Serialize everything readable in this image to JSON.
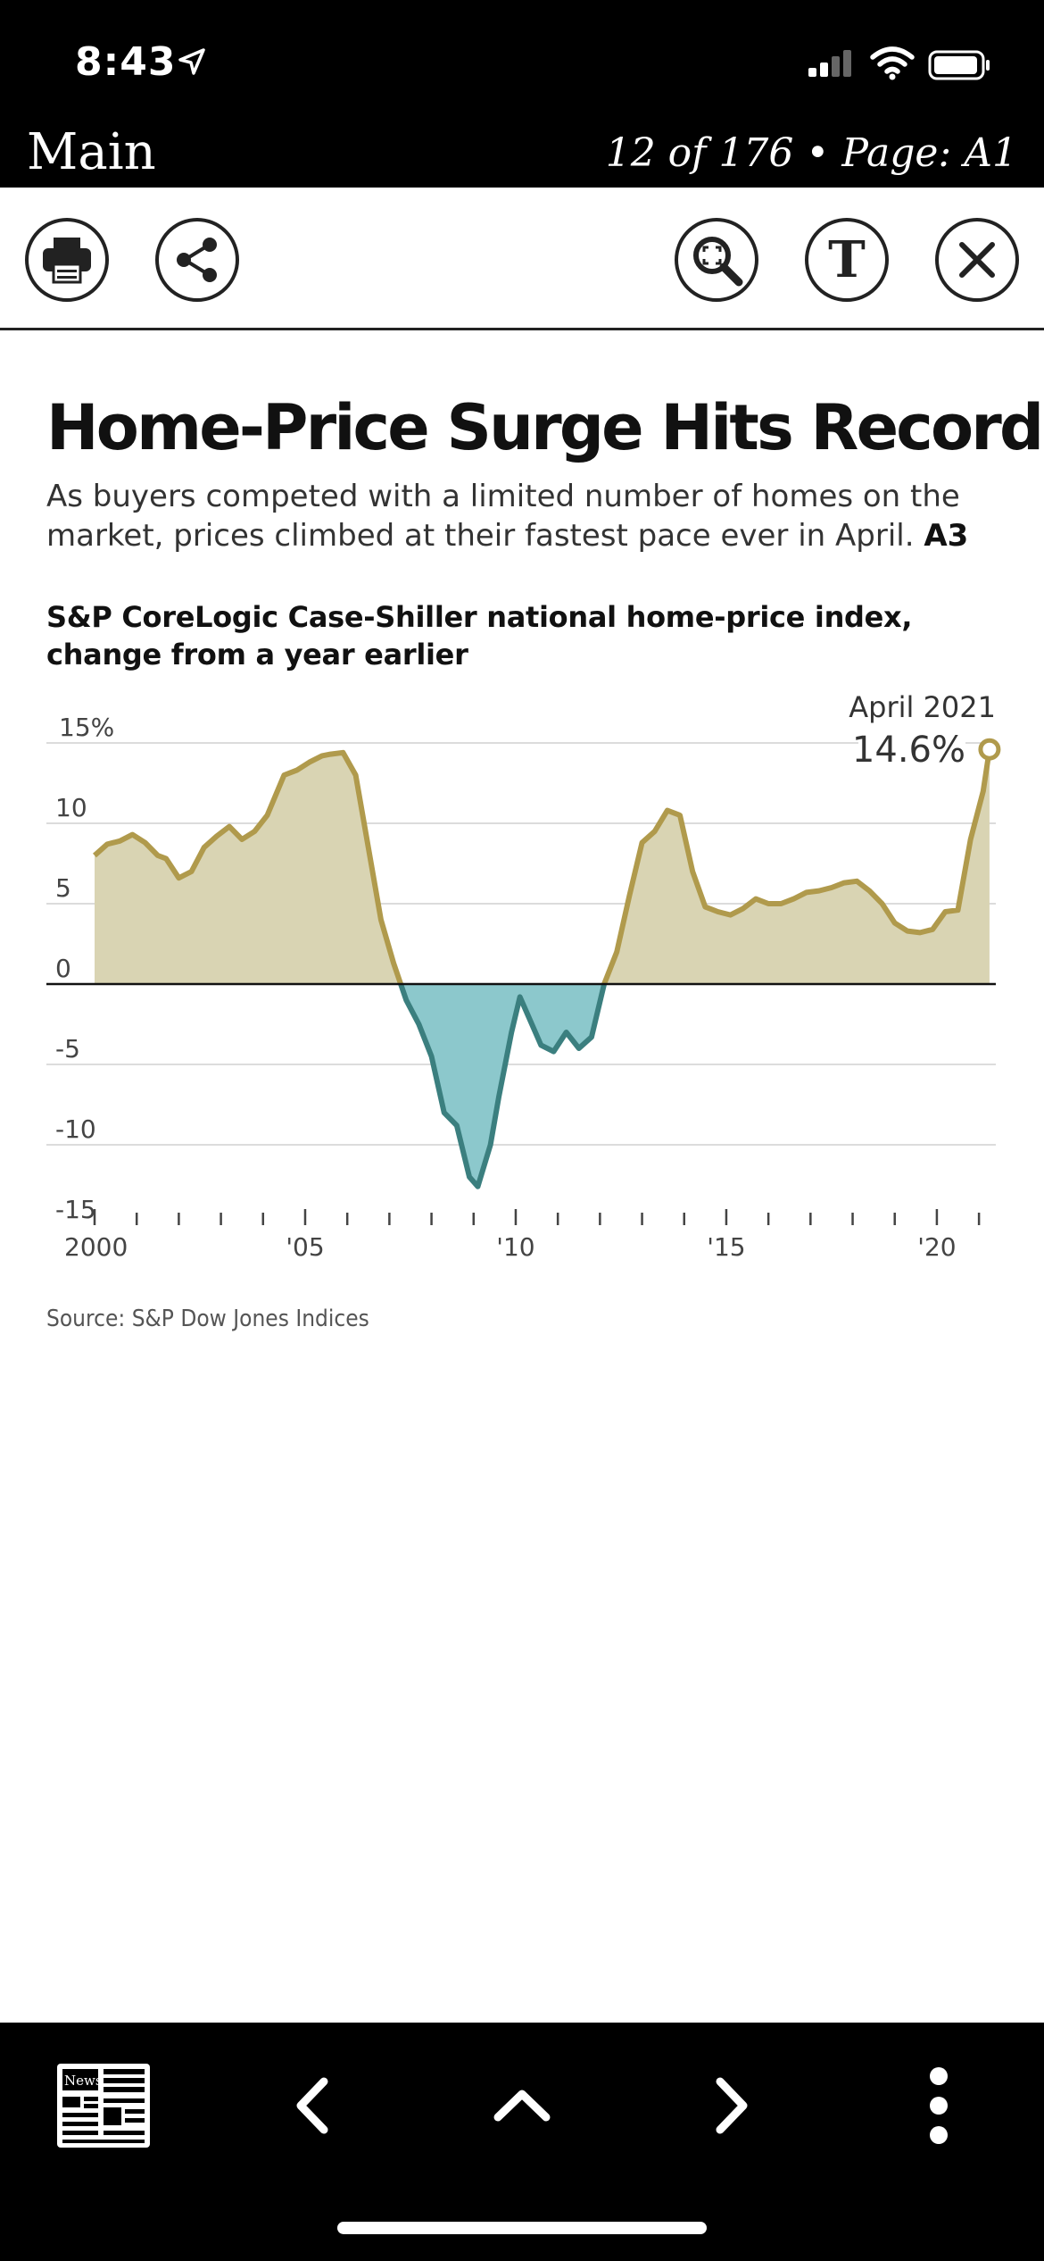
{
  "status_bar": {
    "time": "8:43"
  },
  "header": {
    "title": "Main",
    "page_info": "12 of 176 • Page: A1"
  },
  "toolbar": {
    "left_icons": [
      "printer-icon",
      "share-icon"
    ],
    "right_icons": [
      "zoom-icon",
      "text-size-icon",
      "close-icon"
    ],
    "text_size_glyph": "T"
  },
  "article": {
    "headline": "Home-Price Surge Hits Record",
    "dek": "As buyers competed with a limited number of homes on the market, prices climbed at their fastest pace ever in April.",
    "dek_ref": "A3",
    "chart_title_line1": "S&P CoreLogic Case-Shiller national home-price index,",
    "chart_title_line2": "change from a year earlier",
    "source": "Source: S&P Dow Jones Indices"
  },
  "chart_data": {
    "type": "area",
    "title": "S&P CoreLogic Case-Shiller national home-price index, change from a year earlier",
    "ylabel": "",
    "xlabel": "",
    "ylim": [
      -15,
      15
    ],
    "xlim": [
      2000,
      2021.4
    ],
    "y_ticks": [
      {
        "value": 15,
        "label": "15%"
      },
      {
        "value": 10,
        "label": "10"
      },
      {
        "value": 5,
        "label": "5"
      },
      {
        "value": 0,
        "label": "0"
      },
      {
        "value": -5,
        "label": "-5"
      },
      {
        "value": -10,
        "label": "-10"
      },
      {
        "value": -15,
        "label": "-15"
      }
    ],
    "x_ticks": [
      {
        "value": 2000,
        "label": "2000"
      },
      {
        "value": 2005,
        "label": "'05"
      },
      {
        "value": 2010,
        "label": "'10"
      },
      {
        "value": 2015,
        "label": "'15"
      },
      {
        "value": 2020,
        "label": "'20"
      }
    ],
    "annotation": {
      "label": "April 2021",
      "value_label": "14.6%",
      "x": 2021.25,
      "y": 14.6
    },
    "colors": {
      "positive_fill": "#d9d4b3",
      "negative_fill": "#8cc8cc",
      "positive_line": "#b09a4c",
      "negative_line": "#3b7f7f"
    },
    "series": [
      {
        "x": [
          2000.0,
          2000.3,
          2000.6,
          2000.9,
          2001.2,
          2001.5,
          2001.7,
          2002.0,
          2002.3,
          2002.6,
          2002.9,
          2003.2,
          2003.5,
          2003.8,
          2004.1,
          2004.5,
          2004.8,
          2005.1,
          2005.4,
          2005.6,
          2005.9,
          2006.2,
          2006.5,
          2006.8,
          2007.1,
          2007.4,
          2007.7,
          2008.0,
          2008.3,
          2008.6,
          2008.9,
          2009.1,
          2009.4,
          2009.6,
          2009.9,
          2010.1,
          2010.3,
          2010.6,
          2010.9,
          2011.2,
          2011.5,
          2011.8,
          2012.1,
          2012.4,
          2012.7,
          2013.0,
          2013.3,
          2013.6,
          2013.9,
          2014.2,
          2014.5,
          2014.8,
          2015.1,
          2015.4,
          2015.7,
          2016.0,
          2016.3,
          2016.6,
          2016.9,
          2017.2,
          2017.5,
          2017.8,
          2018.1,
          2018.4,
          2018.7,
          2019.0,
          2019.3,
          2019.6,
          2019.9,
          2020.2,
          2020.5,
          2020.8,
          2021.1,
          2021.25
        ],
        "values": [
          8.0,
          8.7,
          8.9,
          9.3,
          8.8,
          8.0,
          7.8,
          6.6,
          7.0,
          8.5,
          9.2,
          9.8,
          9.0,
          9.5,
          10.5,
          13.0,
          13.3,
          13.8,
          14.2,
          14.3,
          14.4,
          13.0,
          8.5,
          4.0,
          1.3,
          -1.0,
          -2.5,
          -4.5,
          -8.0,
          -8.8,
          -12.0,
          -12.6,
          -10.0,
          -7.0,
          -3.0,
          -0.8,
          -2.0,
          -3.8,
          -4.2,
          -3.0,
          -4.0,
          -3.3,
          0.0,
          2.0,
          5.5,
          8.8,
          9.5,
          10.8,
          10.5,
          7.0,
          4.8,
          4.5,
          4.3,
          4.7,
          5.3,
          5.0,
          5.0,
          5.3,
          5.7,
          5.8,
          6.0,
          6.3,
          6.4,
          5.8,
          5.0,
          3.8,
          3.3,
          3.2,
          3.4,
          4.5,
          4.6,
          9.0,
          12.0,
          14.6
        ]
      }
    ]
  }
}
